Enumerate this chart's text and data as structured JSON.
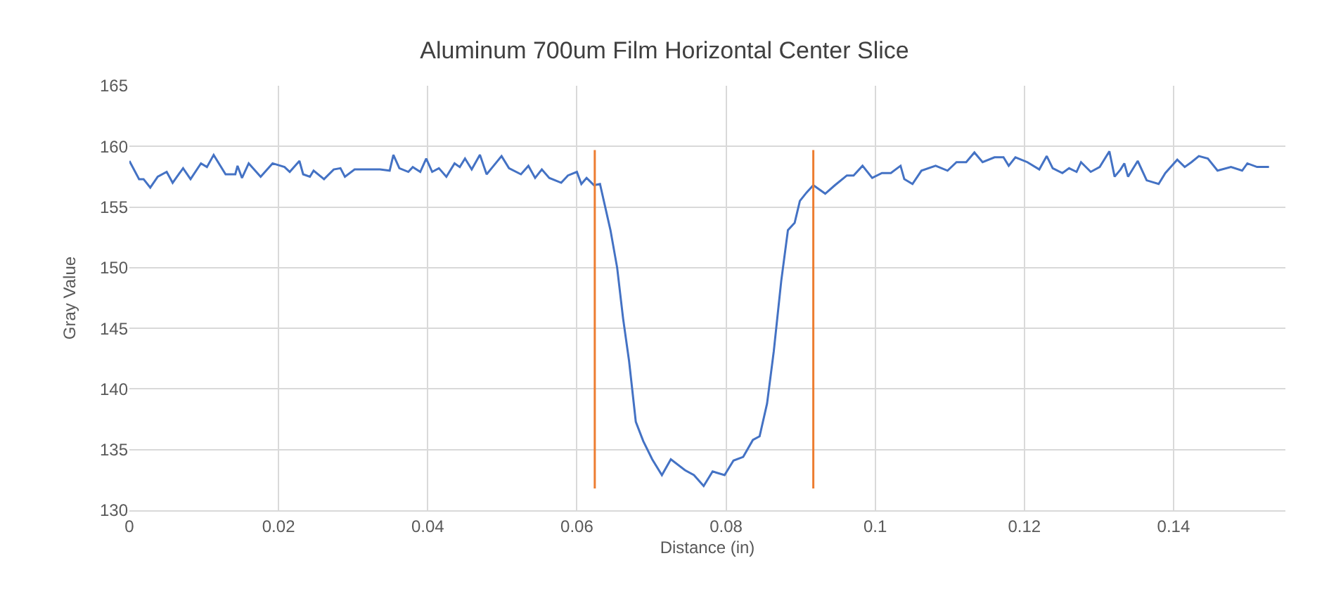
{
  "chart_data": {
    "type": "line",
    "title": "Aluminum 700um Film Horizontal Center Slice",
    "xlabel": "Distance (in)",
    "ylabel": "Gray Value",
    "xlim": [
      0,
      0.155
    ],
    "xticks": [
      0,
      0.02,
      0.04,
      0.06,
      0.08,
      0.1,
      0.12,
      0.14
    ],
    "ylim": [
      130,
      165
    ],
    "yticks": [
      130,
      135,
      140,
      145,
      150,
      155,
      160,
      165
    ],
    "grid": true,
    "marker": "none",
    "line_style": "solid",
    "series": [
      {
        "color": "#4472c4",
        "x": [
          0,
          0.0013,
          0.0019,
          0.0028,
          0.0038,
          0.005,
          0.0058,
          0.0072,
          0.0082,
          0.0096,
          0.0104,
          0.0113,
          0.0129,
          0.0142,
          0.0145,
          0.0151,
          0.016,
          0.0176,
          0.0192,
          0.0208,
          0.0215,
          0.0228,
          0.0233,
          0.0242,
          0.0247,
          0.0261,
          0.0274,
          0.0283,
          0.0289,
          0.0302,
          0.0318,
          0.0336,
          0.0349,
          0.0354,
          0.0362,
          0.0374,
          0.038,
          0.039,
          0.0398,
          0.0406,
          0.0415,
          0.0425,
          0.0436,
          0.0443,
          0.045,
          0.0459,
          0.047,
          0.0479,
          0.0487,
          0.0499,
          0.0509,
          0.0525,
          0.0535,
          0.0544,
          0.0553,
          0.0563,
          0.0579,
          0.0588,
          0.06,
          0.0606,
          0.0613,
          0.0623,
          0.0631,
          0.0638,
          0.0645,
          0.0654,
          0.0662,
          0.067,
          0.0679,
          0.0689,
          0.0701,
          0.0714,
          0.0726,
          0.0745,
          0.0757,
          0.077,
          0.0782,
          0.0798,
          0.081,
          0.0823,
          0.0836,
          0.0845,
          0.0855,
          0.0864,
          0.0874,
          0.0883,
          0.0892,
          0.0899,
          0.0908,
          0.0917,
          0.0933,
          0.0946,
          0.0962,
          0.0971,
          0.0983,
          0.0996,
          0.1009,
          0.1021,
          0.1034,
          0.1039,
          0.105,
          0.1062,
          0.1081,
          0.1097,
          0.1109,
          0.1122,
          0.1133,
          0.1144,
          0.116,
          0.1172,
          0.1179,
          0.1188,
          0.1204,
          0.122,
          0.123,
          0.1238,
          0.1251,
          0.126,
          0.127,
          0.1276,
          0.1289,
          0.1301,
          0.1314,
          0.1321,
          0.1329,
          0.1334,
          0.1339,
          0.1352,
          0.1364,
          0.138,
          0.1389,
          0.1405,
          0.1415,
          0.1424,
          0.1434,
          0.1446,
          0.1459,
          0.1477,
          0.1492,
          0.1499,
          0.1512,
          0.1528
        ],
        "values": [
          158.8,
          157.3,
          157.3,
          156.6,
          157.5,
          157.9,
          157.0,
          158.2,
          157.3,
          158.6,
          158.3,
          159.3,
          157.7,
          157.7,
          158.4,
          157.4,
          158.6,
          157.5,
          158.6,
          158.3,
          157.9,
          158.8,
          157.7,
          157.5,
          158.0,
          157.3,
          158.1,
          158.2,
          157.5,
          158.1,
          158.1,
          158.1,
          158.0,
          159.3,
          158.2,
          157.9,
          158.3,
          157.9,
          159.0,
          157.9,
          158.2,
          157.5,
          158.6,
          158.3,
          159.0,
          158.1,
          159.3,
          157.7,
          158.3,
          159.2,
          158.2,
          157.7,
          158.4,
          157.4,
          158.1,
          157.4,
          157.0,
          157.6,
          157.9,
          156.9,
          157.4,
          156.8,
          156.9,
          155.0,
          153.1,
          150.0,
          145.8,
          142.3,
          137.3,
          135.7,
          134.2,
          132.9,
          134.2,
          133.3,
          132.9,
          132.0,
          133.2,
          132.9,
          134.1,
          134.4,
          135.8,
          136.1,
          138.8,
          143.1,
          148.9,
          153.1,
          153.7,
          155.5,
          156.2,
          156.8,
          156.1,
          156.8,
          157.6,
          157.6,
          158.4,
          157.4,
          157.8,
          157.8,
          158.4,
          157.3,
          156.9,
          158.0,
          158.4,
          158.0,
          158.7,
          158.7,
          159.5,
          158.7,
          159.1,
          159.1,
          158.4,
          159.1,
          158.7,
          158.1,
          159.2,
          158.2,
          157.8,
          158.2,
          157.9,
          158.7,
          157.9,
          158.3,
          159.6,
          157.5,
          158.1,
          158.6,
          157.5,
          158.8,
          157.2,
          156.9,
          157.8,
          158.9,
          158.3,
          158.7,
          159.2,
          159.0,
          158.0,
          158.3,
          158.0,
          158.6,
          158.3,
          158.3
        ]
      },
      {
        "color": "#ed7d31",
        "x": [
          0.0624,
          0.0624
        ],
        "values": [
          131.8,
          159.7
        ]
      },
      {
        "color": "#ed7d31",
        "x": [
          0.0917,
          0.0917
        ],
        "values": [
          131.8,
          159.7
        ]
      }
    ]
  }
}
